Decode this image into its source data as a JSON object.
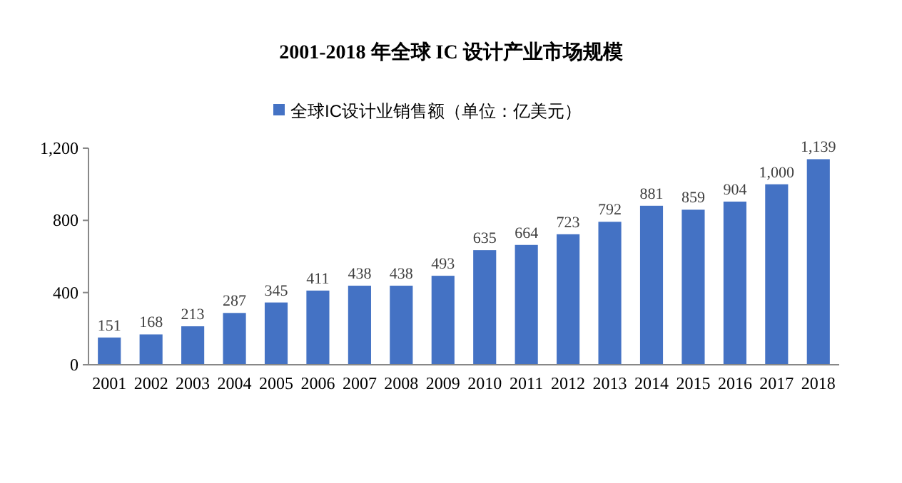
{
  "chart_data": {
    "type": "bar",
    "title": "2001-2018 年全球 IC 设计产业市场规模",
    "categories": [
      "2001",
      "2002",
      "2003",
      "2004",
      "2005",
      "2006",
      "2007",
      "2008",
      "2009",
      "2010",
      "2011",
      "2012",
      "2013",
      "2014",
      "2015",
      "2016",
      "2017",
      "2018"
    ],
    "series": [
      {
        "name": "全球IC设计业销售额（单位：亿美元）",
        "color": "#4472c4",
        "values": [
          151,
          168,
          213,
          287,
          345,
          411,
          438,
          438,
          493,
          635,
          664,
          723,
          792,
          881,
          859,
          904,
          1000,
          1139
        ],
        "value_labels": [
          "151",
          "168",
          "213",
          "287",
          "345",
          "411",
          "438",
          "438",
          "493",
          "635",
          "664",
          "723",
          "792",
          "881",
          "859",
          "904",
          "1,000",
          "1,139"
        ]
      }
    ],
    "ylim": [
      0,
      1200
    ],
    "yticks": [
      0,
      400,
      800,
      {
        "value": 1200,
        "label": "1,200"
      }
    ],
    "grid": false,
    "legend": "top"
  }
}
